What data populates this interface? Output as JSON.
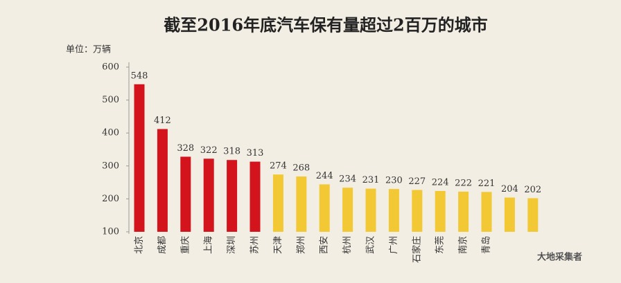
{
  "chart_data": {
    "type": "bar",
    "title": "截至2016年底汽车保有量超过2百万的城市",
    "unit_label": "单位：万辆",
    "categories": [
      "北京",
      "成都",
      "重庆",
      "上海",
      "深圳",
      "苏州",
      "天津",
      "郑州",
      "西安",
      "杭州",
      "武汉",
      "广州",
      "石家庄",
      "东莞",
      "南京",
      "青岛",
      null,
      null
    ],
    "values": [
      548,
      412,
      328,
      322,
      318,
      313,
      274,
      268,
      244,
      234,
      231,
      230,
      227,
      224,
      222,
      221,
      204,
      202
    ],
    "colors": [
      "#d3141d",
      "#d3141d",
      "#d3141d",
      "#d3141d",
      "#d3141d",
      "#d3141d",
      "#f2c935",
      "#f2c935",
      "#f2c935",
      "#f2c935",
      "#f2c935",
      "#f2c935",
      "#f2c935",
      "#f2c935",
      "#f2c935",
      "#f2c935",
      "#f2c935",
      "#f2c935"
    ],
    "ylim": [
      100,
      600
    ],
    "yticks": [
      100,
      200,
      300,
      400,
      500,
      600
    ],
    "grid": false
  },
  "watermark": "大地采集者"
}
